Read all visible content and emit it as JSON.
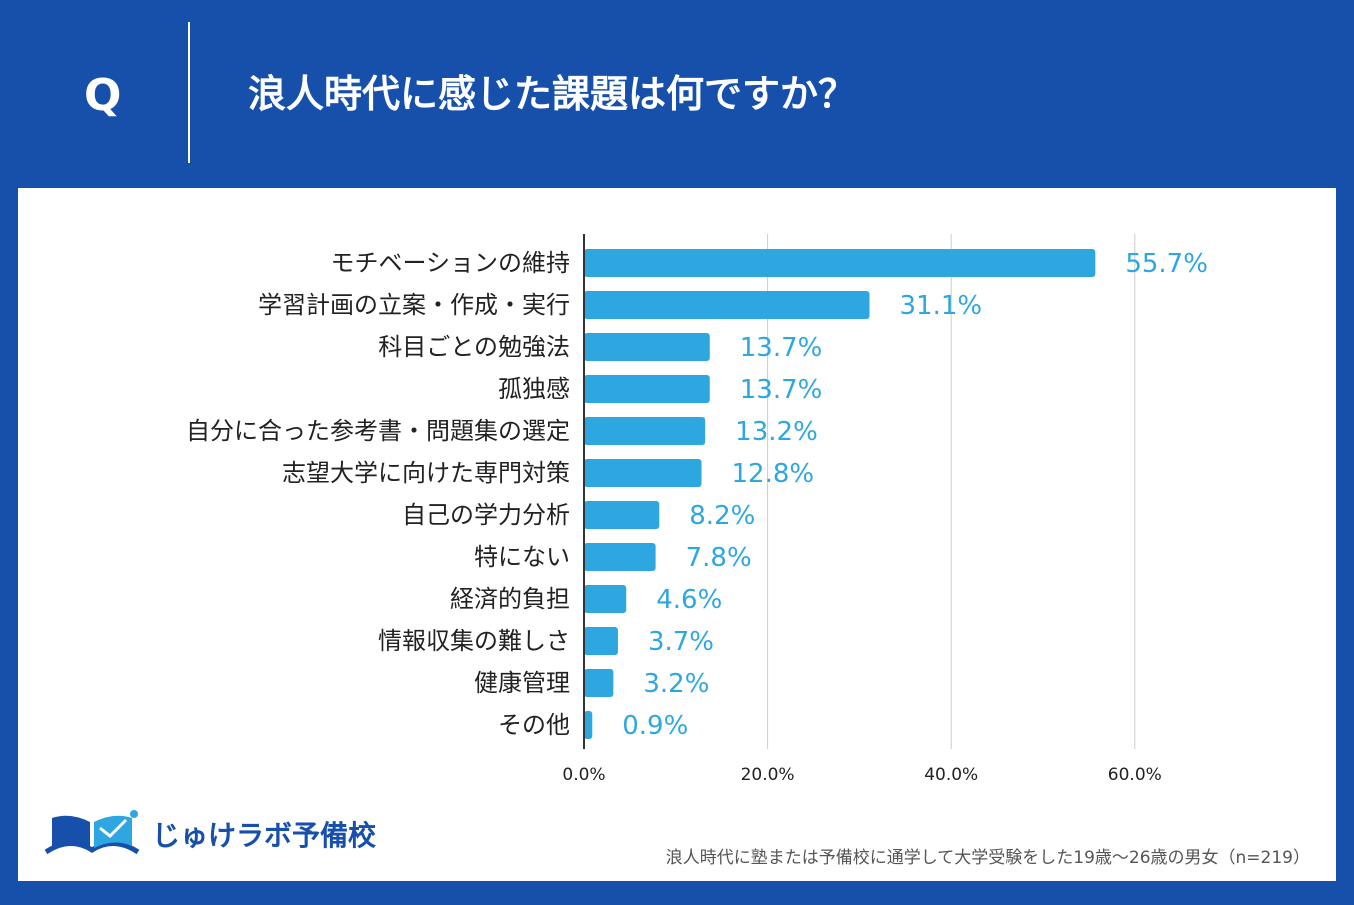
{
  "header": {
    "q_mark": "Q",
    "title": "浪人時代に感じた課題は何ですか？"
  },
  "colors": {
    "background": "#1650ab",
    "bar": "#2ea7e0",
    "value_label": "#2ea7e0",
    "gridline": "#cccccc",
    "axis": "#333333"
  },
  "chart_data": {
    "type": "bar",
    "orientation": "horizontal",
    "title": "浪人時代に感じた課題は何ですか？",
    "categories": [
      "モチベーションの維持",
      "学習計画の立案・作成・実行",
      "科目ごとの勉強法",
      "孤独感",
      "自分に合った参考書・問題集の選定",
      "志望大学に向けた専門対策",
      "自己の学力分析",
      "特にない",
      "経済的負担",
      "情報収集の難しさ",
      "健康管理",
      "その他"
    ],
    "values": [
      55.7,
      31.1,
      13.7,
      13.7,
      13.2,
      12.8,
      8.2,
      7.8,
      4.6,
      3.7,
      3.2,
      0.9
    ],
    "value_labels": [
      "55.7%",
      "31.1%",
      "13.7%",
      "13.7%",
      "13.2%",
      "12.8%",
      "8.2%",
      "7.8%",
      "4.6%",
      "3.7%",
      "3.2%",
      "0.9%"
    ],
    "x_ticks": [
      0,
      20,
      40,
      60
    ],
    "x_tick_labels": [
      "0.0%",
      "20.0%",
      "40.0%",
      "60.0%"
    ],
    "xlim": [
      0,
      60
    ],
    "grid": true,
    "unit": "%"
  },
  "logo": {
    "icon": "open-book-icon",
    "text": "じゅけラボ予備校"
  },
  "footnote": "浪人時代に塾または予備校に通学して大学受験をした19歳～26歳の男女（n=219）"
}
